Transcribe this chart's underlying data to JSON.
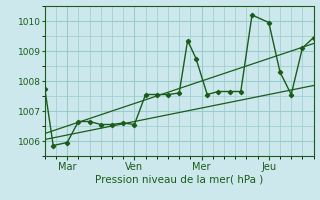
{
  "xlabel": "Pression niveau de la mer( hPa )",
  "bg_color": "#cce8ec",
  "grid_color": "#99cccc",
  "line_color": "#1a5c1a",
  "text_color": "#1a5c1a",
  "ylim": [
    1005.5,
    1010.5
  ],
  "xlim": [
    0,
    96
  ],
  "yticks": [
    1006,
    1007,
    1008,
    1009,
    1010
  ],
  "xtick_positions": [
    8,
    32,
    56,
    80
  ],
  "xtick_labels": [
    "Mar",
    "Ven",
    "Mer",
    "Jeu"
  ],
  "main_x": [
    0,
    3,
    8,
    12,
    16,
    20,
    24,
    28,
    32,
    36,
    40,
    44,
    48,
    51,
    54,
    58,
    62,
    66,
    70,
    74,
    80,
    84,
    88,
    92,
    96
  ],
  "main_y": [
    1007.75,
    1005.85,
    1005.95,
    1006.65,
    1006.65,
    1006.55,
    1006.55,
    1006.6,
    1006.55,
    1007.55,
    1007.55,
    1007.55,
    1007.6,
    1009.35,
    1008.75,
    1007.55,
    1007.65,
    1007.65,
    1007.65,
    1010.2,
    1009.95,
    1008.3,
    1007.55,
    1009.1,
    1009.45
  ],
  "trend1_x": [
    0,
    96
  ],
  "trend1_y": [
    1006.05,
    1007.85
  ],
  "trend2_x": [
    0,
    96
  ],
  "trend2_y": [
    1006.25,
    1009.25
  ]
}
